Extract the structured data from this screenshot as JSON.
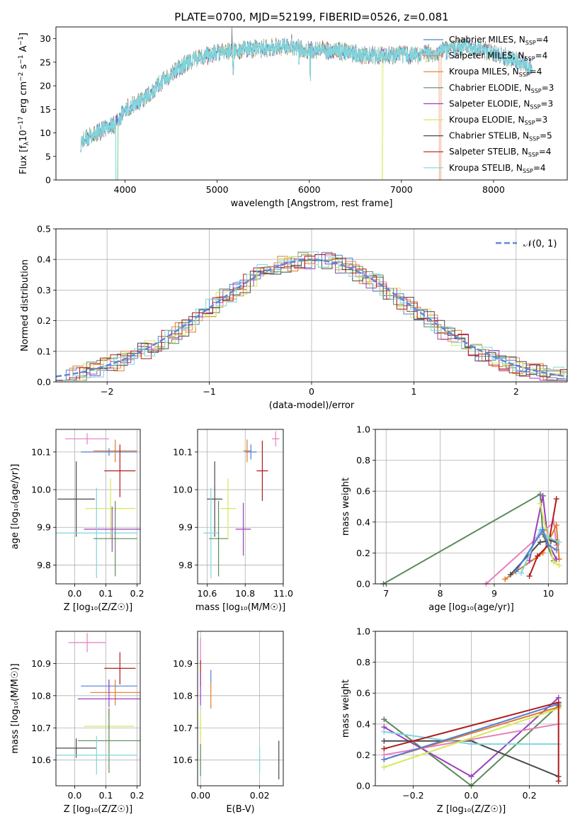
{
  "figure": {
    "title": "PLATE=0700, MJD=52199, FIBERID=0526, z=0.081"
  },
  "colors": {
    "Chabrier MILES": "#4f7fd9",
    "Salpeter MILES": "#e38b5a",
    "Kroupa MILES": "#e07b2a",
    "Chabrier ELODIE": "#5b8a5b",
    "Salpeter ELODIE": "#9b3fbf",
    "Kroupa ELODIE": "#d6e85a",
    "Chabrier STELIB": "#4a4a4a",
    "Salpeter STELIB": "#b01c1c",
    "Kroupa STELIB": "#7fd6dd",
    "Pink": "#e67fbf"
  },
  "chart_data": [
    {
      "id": "spectrum",
      "type": "line",
      "xlabel": "wavelength [Angstrom, rest frame]",
      "ylabel": "Flux [f_λ 10^-17 erg cm^-2 s^-1 A^-1]",
      "xlim": [
        3250,
        8800
      ],
      "ylim": [
        0,
        32.5
      ],
      "xticks": [
        "4000",
        "5000",
        "6000",
        "7000",
        "8000"
      ],
      "yticks": [
        "0",
        "5",
        "10",
        "15",
        "20",
        "25",
        "30"
      ],
      "legend_position": "top-right",
      "legend": [
        {
          "base": "Chabrier MILES, N",
          "sub": "SSP",
          "tail": "=4"
        },
        {
          "base": "Salpeter MILES, N",
          "sub": "SSP",
          "tail": "=4"
        },
        {
          "base": "Kroupa MILES, N",
          "sub": "SSP",
          "tail": "=4"
        },
        {
          "base": "Chabrier ELODIE, N",
          "sub": "SSP",
          "tail": "=3"
        },
        {
          "base": "Salpeter ELODIE, N",
          "sub": "SSP",
          "tail": "=3"
        },
        {
          "base": "Kroupa ELODIE, N",
          "sub": "SSP",
          "tail": "=3"
        },
        {
          "base": "Chabrier STELIB, N",
          "sub": "SSP",
          "tail": "=5"
        },
        {
          "base": "Salpeter STELIB, N",
          "sub": "SSP",
          "tail": "=4"
        },
        {
          "base": "Kroupa STELIB, N",
          "sub": "SSP",
          "tail": "=4"
        }
      ],
      "continuum": [
        [
          3520,
          8
        ],
        [
          3700,
          10
        ],
        [
          3900,
          12
        ],
        [
          4000,
          15
        ],
        [
          4200,
          17
        ],
        [
          4400,
          21
        ],
        [
          4600,
          24
        ],
        [
          4800,
          26
        ],
        [
          5000,
          27
        ],
        [
          5200,
          27.5
        ],
        [
          5500,
          28
        ],
        [
          5800,
          28.5
        ],
        [
          6000,
          27.5
        ],
        [
          6300,
          27.5
        ],
        [
          6600,
          26.5
        ],
        [
          6900,
          26.5
        ],
        [
          7200,
          26.5
        ],
        [
          7500,
          27.5
        ],
        [
          7700,
          28.5
        ],
        [
          8000,
          27
        ],
        [
          8300,
          25
        ],
        [
          8400,
          24
        ]
      ]
    },
    {
      "id": "residuals",
      "type": "line",
      "xlabel": "(data-model)/error",
      "ylabel": "Normed distribution",
      "xlim": [
        -2.5,
        2.5
      ],
      "ylim": [
        0,
        0.5
      ],
      "xticks": [
        "−2",
        "−1",
        "0",
        "1",
        "2"
      ],
      "yticks": [
        "0.0",
        "0.1",
        "0.2",
        "0.3",
        "0.4",
        "0.5"
      ],
      "legend": "𝒩(0, 1)",
      "grid": true
    },
    {
      "id": "age-vs-z",
      "type": "scatter",
      "xlabel": "Z [log₁₀(Z/Z☉)]",
      "ylabel": "age  [log₁₀(age/yr)]",
      "xlim": [
        -0.06,
        0.21
      ],
      "ylim": [
        9.75,
        10.16
      ],
      "xticks": [
        "0.0",
        "0.1",
        "0.2"
      ],
      "yticks": [
        "9.8",
        "9.9",
        "10.0",
        "10.1"
      ],
      "points": [
        {
          "c": "Pink",
          "x": 0.04,
          "xe": 0.07,
          "y": 10.135,
          "ye": 0.015
        },
        {
          "c": "Kroupa MILES",
          "x": 0.13,
          "xe": 0.07,
          "y": 10.103,
          "ye": 0.03
        },
        {
          "c": "Chabrier MILES",
          "x": 0.11,
          "xe": 0.09,
          "y": 10.1,
          "ye": 0.01
        },
        {
          "c": "Salpeter STELIB",
          "x": 0.145,
          "xe": 0.05,
          "y": 10.05,
          "ye": 0.07
        },
        {
          "c": "Chabrier STELIB",
          "x": 0.005,
          "xe": 0.06,
          "y": 9.975,
          "ye": 0.1
        },
        {
          "c": "Kroupa ELODIE",
          "x": 0.115,
          "xe": 0.08,
          "y": 9.95,
          "ye": 0.08
        },
        {
          "c": "Salpeter ELODIE",
          "x": 0.12,
          "xe": 0.09,
          "y": 9.895,
          "ye": 0.06
        },
        {
          "c": "Kroupa STELIB",
          "x": 0.07,
          "xe": 0.13,
          "y": 9.885,
          "ye": 0.12
        },
        {
          "c": "Chabrier ELODIE",
          "x": 0.13,
          "xe": 0.07,
          "y": 9.87,
          "ye": 0.1
        }
      ]
    },
    {
      "id": "age-vs-mass",
      "type": "scatter",
      "xlabel": "mass [log₁₀(M/M☉)]",
      "ylabel": "",
      "xlim": [
        10.55,
        11.0
      ],
      "ylim": [
        9.75,
        10.16
      ],
      "xticks": [
        "10.6",
        "10.8",
        "11.0"
      ],
      "yticks": [
        "9.8",
        "9.9",
        "10.0",
        "10.1"
      ],
      "points": [
        {
          "c": "Pink",
          "x": 10.96,
          "xe": 0.02,
          "y": 10.135,
          "ye": 0.02
        },
        {
          "c": "Kroupa MILES",
          "x": 10.81,
          "xe": 0.02,
          "y": 10.103,
          "ye": 0.03
        },
        {
          "c": "Chabrier MILES",
          "x": 10.83,
          "xe": 0.03,
          "y": 10.1,
          "ye": 0.02
        },
        {
          "c": "Salpeter STELIB",
          "x": 10.89,
          "xe": 0.03,
          "y": 10.05,
          "ye": 0.08
        },
        {
          "c": "Chabrier STELIB",
          "x": 10.64,
          "xe": 0.04,
          "y": 9.975,
          "ye": 0.1
        },
        {
          "c": "Kroupa ELODIE",
          "x": 10.71,
          "xe": 0.04,
          "y": 9.95,
          "ye": 0.08
        },
        {
          "c": "Salpeter ELODIE",
          "x": 10.79,
          "xe": 0.04,
          "y": 9.895,
          "ye": 0.07
        },
        {
          "c": "Kroupa STELIB",
          "x": 10.62,
          "xe": 0.04,
          "y": 9.885,
          "ye": 0.12
        },
        {
          "c": "Chabrier ELODIE",
          "x": 10.66,
          "xe": 0.05,
          "y": 9.87,
          "ye": 0.1
        }
      ]
    },
    {
      "id": "mass-weight-vs-age",
      "type": "line",
      "xlabel": "age  [log₁₀(age/yr)]",
      "ylabel": "mass weight",
      "xlim": [
        6.8,
        10.35
      ],
      "ylim": [
        0,
        1.0
      ],
      "xticks": [
        "7",
        "8",
        "9",
        "10"
      ],
      "yticks": [
        "0.0",
        "0.2",
        "0.4",
        "0.6",
        "0.8",
        "1.0"
      ],
      "series": [
        {
          "c": "Chabrier ELODIE",
          "points": [
            [
              6.95,
              0.0
            ],
            [
              9.85,
              0.58
            ],
            [
              9.9,
              0.32
            ],
            [
              10.1,
              0.15
            ]
          ]
        },
        {
          "c": "Pink",
          "points": [
            [
              8.85,
              0.0
            ],
            [
              9.8,
              0.3
            ],
            [
              10.1,
              0.4
            ],
            [
              10.15,
              0.25
            ]
          ]
        },
        {
          "c": "Kroupa MILES",
          "points": [
            [
              9.2,
              0.03
            ],
            [
              9.9,
              0.2
            ],
            [
              10.15,
              0.38
            ],
            [
              10.2,
              0.16
            ]
          ]
        },
        {
          "c": "Salpeter ELODIE",
          "points": [
            [
              9.65,
              0.15
            ],
            [
              9.9,
              0.57
            ],
            [
              10.0,
              0.26
            ],
            [
              10.15,
              0.16
            ]
          ]
        },
        {
          "c": "Salpeter STELIB",
          "points": [
            [
              9.65,
              0.05
            ],
            [
              9.8,
              0.18
            ],
            [
              10.0,
              0.25
            ],
            [
              10.15,
              0.55
            ]
          ]
        },
        {
          "c": "Chabrier STELIB",
          "points": [
            [
              9.3,
              0.06
            ],
            [
              9.85,
              0.27
            ],
            [
              10.05,
              0.28
            ],
            [
              10.15,
              0.27
            ]
          ]
        },
        {
          "c": "Kroupa ELODIE",
          "points": [
            [
              9.85,
              0.52
            ],
            [
              9.95,
              0.36
            ],
            [
              10.1,
              0.14
            ],
            [
              10.2,
              0.12
            ]
          ]
        },
        {
          "c": "Kroupa STELIB",
          "points": [
            [
              9.5,
              0.07
            ],
            [
              9.85,
              0.35
            ],
            [
              10.0,
              0.3
            ],
            [
              10.2,
              0.27
            ]
          ]
        },
        {
          "c": "Chabrier MILES",
          "points": [
            [
              9.4,
              0.08
            ],
            [
              9.9,
              0.35
            ],
            [
              10.0,
              0.25
            ],
            [
              10.15,
              0.22
            ]
          ]
        }
      ]
    },
    {
      "id": "mass-vs-z",
      "type": "scatter",
      "xlabel": "Z [log₁₀(Z/Z☉)]",
      "ylabel": "mass [log₁₀(M/M☉)]",
      "xlim": [
        -0.06,
        0.21
      ],
      "ylim": [
        10.52,
        11.0
      ],
      "xticks": [
        "0.0",
        "0.1",
        "0.2"
      ],
      "yticks": [
        "10.6",
        "10.7",
        "10.8",
        "10.9"
      ],
      "points": [
        {
          "c": "Pink",
          "x": 0.04,
          "xe": 0.06,
          "y": 10.965,
          "ye": 0.03
        },
        {
          "c": "Salpeter STELIB",
          "x": 0.145,
          "xe": 0.05,
          "y": 10.885,
          "ye": 0.05
        },
        {
          "c": "Chabrier MILES",
          "x": 0.11,
          "xe": 0.09,
          "y": 10.83,
          "ye": 0.02
        },
        {
          "c": "Kroupa MILES",
          "x": 0.13,
          "xe": 0.08,
          "y": 10.81,
          "ye": 0.04
        },
        {
          "c": "Salpeter ELODIE",
          "x": 0.11,
          "xe": 0.1,
          "y": 10.79,
          "ye": 0.06
        },
        {
          "c": "Kroupa ELODIE",
          "x": 0.11,
          "xe": 0.08,
          "y": 10.705,
          "ye": 0.06
        },
        {
          "c": "Chabrier ELODIE",
          "x": 0.11,
          "xe": 0.1,
          "y": 10.66,
          "ye": 0.1
        },
        {
          "c": "Chabrier STELIB",
          "x": 0.005,
          "xe": 0.065,
          "y": 10.637,
          "ye": 0.03
        },
        {
          "c": "Kroupa STELIB",
          "x": 0.07,
          "xe": 0.13,
          "y": 10.615,
          "ye": 0.06
        }
      ]
    },
    {
      "id": "mass-vs-ebv",
      "type": "scatter",
      "xlabel": "E(B-V)",
      "ylabel": "",
      "xlim": [
        -0.001,
        0.028
      ],
      "ylim": [
        10.52,
        11.0
      ],
      "xticks": [
        "0.00",
        "0.02"
      ],
      "yticks": [
        "10.6",
        "10.7",
        "10.8",
        "10.9"
      ],
      "points": [
        {
          "c": "Pink",
          "x": 0.0,
          "xe": 0.0,
          "y": 10.94,
          "ye": 0.04
        },
        {
          "c": "Salpeter STELIB",
          "x": 0.0,
          "xe": 0.0,
          "y": 10.87,
          "ye": 0.04
        },
        {
          "c": "Chabrier MILES",
          "x": 0.0035,
          "xe": 0.0,
          "y": 10.86,
          "ye": 0.02
        },
        {
          "c": "Kroupa MILES",
          "x": 0.0035,
          "xe": 0.0,
          "y": 10.8,
          "ye": 0.04
        },
        {
          "c": "Salpeter ELODIE",
          "x": 0.0,
          "xe": 0.0,
          "y": 10.82,
          "ye": 0.05
        },
        {
          "c": "Kroupa ELODIE",
          "x": 0.0,
          "xe": 0.0,
          "y": 10.7,
          "ye": 0.05
        },
        {
          "c": "Chabrier ELODIE",
          "x": 0.0,
          "xe": 0.0,
          "y": 10.6,
          "ye": 0.05
        },
        {
          "c": "Kroupa STELIB",
          "x": 0.02,
          "xe": 0.0,
          "y": 10.6,
          "ye": 0.04
        },
        {
          "c": "Chabrier STELIB",
          "x": 0.0265,
          "xe": 0.0,
          "y": 10.6,
          "ye": 0.06
        }
      ]
    },
    {
      "id": "mass-weight-vs-z",
      "type": "line",
      "xlabel": "Z [log₁₀(Z/Z☉)]",
      "ylabel": "mass weight",
      "xlim": [
        -0.33,
        0.33
      ],
      "ylim": [
        0,
        1.0
      ],
      "xticks": [
        "−0.2",
        "0.0",
        "0.2"
      ],
      "yticks": [
        "0.0",
        "0.2",
        "0.4",
        "0.6",
        "0.8",
        "1.0"
      ],
      "series": [
        {
          "c": "Chabrier ELODIE",
          "points": [
            [
              -0.3,
              0.43
            ],
            [
              0.0,
              0.0
            ],
            [
              0.3,
              0.52
            ]
          ]
        },
        {
          "c": "Salpeter ELODIE",
          "points": [
            [
              -0.3,
              0.38
            ],
            [
              0.0,
              0.06
            ],
            [
              0.3,
              0.57
            ]
          ]
        },
        {
          "c": "Chabrier STELIB",
          "points": [
            [
              -0.3,
              0.29
            ],
            [
              0.0,
              0.29
            ],
            [
              0.3,
              0.06
            ]
          ]
        },
        {
          "c": "Kroupa STELIB",
          "points": [
            [
              -0.3,
              0.35
            ],
            [
              0.0,
              0.27
            ],
            [
              0.3,
              0.27
            ]
          ]
        },
        {
          "c": "Pink",
          "points": [
            [
              -0.3,
              0.2
            ],
            [
              0.3,
              0.4
            ]
          ]
        },
        {
          "c": "Kroupa ELODIE",
          "points": [
            [
              -0.3,
              0.12
            ],
            [
              0.3,
              0.5
            ]
          ]
        },
        {
          "c": "Kroupa MILES",
          "points": [
            [
              -0.3,
              0.17
            ],
            [
              0.3,
              0.51
            ]
          ]
        },
        {
          "c": "Chabrier MILES",
          "points": [
            [
              -0.3,
              0.17
            ],
            [
              0.3,
              0.53
            ]
          ]
        },
        {
          "c": "Salpeter STELIB",
          "points": [
            [
              -0.3,
              0.24
            ],
            [
              0.3,
              0.54
            ],
            [
              0.3,
              0.03
            ]
          ]
        }
      ]
    }
  ]
}
